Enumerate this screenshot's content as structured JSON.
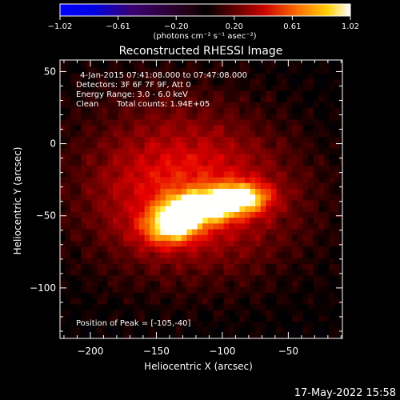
{
  "colorbar": {
    "ticks": [
      "-1.02",
      "-0.61",
      "-0.20",
      "0.20",
      "0.61",
      "1.02"
    ],
    "units_label": "(photons cm⁻² s⁻¹ asec⁻²)"
  },
  "chart_data": {
    "type": "heatmap",
    "title": "Reconstructed RHESSI Image",
    "xlabel": "Heliocentric X (arcsec)",
    "ylabel": "Heliocentric Y (arcsec)",
    "xlim": [
      -223,
      -9
    ],
    "ylim": [
      -135,
      58
    ],
    "x_ticks": [
      -200,
      -150,
      -100,
      -50
    ],
    "y_ticks": [
      50,
      0,
      -50,
      -100
    ],
    "x_tick_labels": [
      "−200",
      "−150",
      "−100",
      "−50"
    ],
    "y_tick_labels": [
      "50",
      "0",
      "−50",
      "−100"
    ],
    "colorbar_range": [
      -1.02,
      1.02
    ],
    "colormap": "hot (black-purple-red-orange-yellow-white)",
    "peak": [
      -105,
      -40
    ],
    "annotations": {
      "time_range": "4-Jan-2015 07:41:08.000 to 07:47:08.000",
      "detectors": "Detectors: 3F 6F 7F 9F, Att 0",
      "energy": "Energy Range: 3.0 - 6.0 keV",
      "method": "Clean",
      "counts": "Total counts: 1.94E+05",
      "peak_text": "Position of Peak = [-105,-40]"
    },
    "sources": [
      {
        "x": -133,
        "y": -52,
        "amp": 0.8,
        "sx": 12,
        "sy": 8
      },
      {
        "x": -112,
        "y": -43,
        "amp": 0.82,
        "sx": 16,
        "sy": 7
      },
      {
        "x": -85,
        "y": -37,
        "amp": 0.7,
        "sx": 15,
        "sy": 7
      },
      {
        "x": -145,
        "y": -60,
        "amp": 0.35,
        "sx": 14,
        "sy": 9
      },
      {
        "x": -120,
        "y": -40,
        "amp": 0.4,
        "sx": 55,
        "sy": 35
      },
      {
        "x": -140,
        "y": -10,
        "amp": 0.18,
        "sx": 50,
        "sy": 40
      }
    ],
    "noise": 0.06
  },
  "footer": {
    "date": "17-May-2022 15:58"
  }
}
